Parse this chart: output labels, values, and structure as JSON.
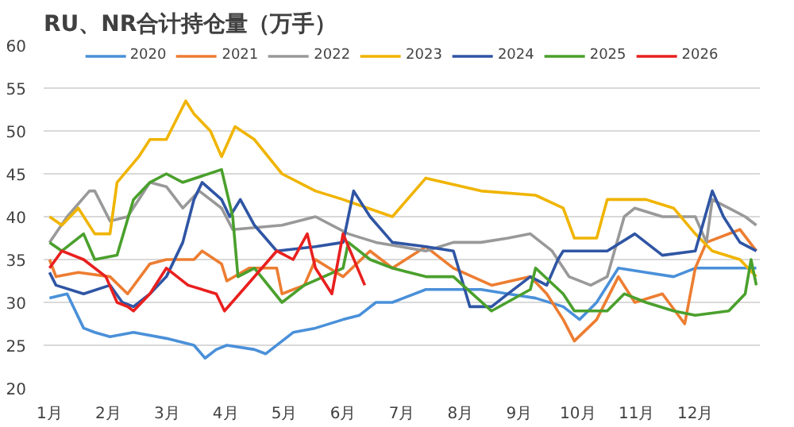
{
  "chart_data": {
    "type": "line",
    "title": "RU、NR合计持仓量（万手）",
    "xlim": [
      0.9,
      13.1
    ],
    "ylim": [
      20,
      60
    ],
    "xticks": [
      {
        "value": 1,
        "label": "1月"
      },
      {
        "value": 2,
        "label": "2月"
      },
      {
        "value": 3,
        "label": "3月"
      },
      {
        "value": 4,
        "label": "4月"
      },
      {
        "value": 5,
        "label": "5月"
      },
      {
        "value": 6,
        "label": "6月"
      },
      {
        "value": 7,
        "label": "7月"
      },
      {
        "value": 8,
        "label": "8月"
      },
      {
        "value": 9,
        "label": "9月"
      },
      {
        "value": 10,
        "label": "10月"
      },
      {
        "value": 11,
        "label": "11月"
      },
      {
        "value": 12,
        "label": "12月"
      }
    ],
    "yticks": [
      20,
      25,
      30,
      35,
      40,
      45,
      50,
      55,
      60
    ],
    "grid": "y",
    "legend": "top",
    "line_style": "solid",
    "marker": "none",
    "series": [
      {
        "name": "2020",
        "color": "#4a90d9",
        "x": [
          1.0,
          1.3,
          1.58,
          1.77,
          2.03,
          2.43,
          2.99,
          3.46,
          3.65,
          3.84,
          4.02,
          4.49,
          4.68,
          5.15,
          5.53,
          6.0,
          6.28,
          6.56,
          6.84,
          7.41,
          7.88,
          8.35,
          8.81,
          9.28,
          9.75,
          10.03,
          10.32,
          10.69,
          11.16,
          11.63,
          12.0,
          12.57,
          13.04
        ],
        "values": [
          30.5,
          31,
          27,
          26.5,
          26,
          26.5,
          25.8,
          25,
          23.5,
          24.5,
          25,
          24.5,
          24,
          26.5,
          27,
          28,
          28.5,
          30,
          30,
          31.5,
          31.5,
          31.5,
          31,
          30.5,
          29.5,
          28,
          30,
          34,
          33.5,
          33,
          34,
          34,
          34
        ]
      },
      {
        "name": "2021",
        "color": "#ed7d31",
        "x": [
          1.0,
          1.11,
          1.49,
          2.03,
          2.33,
          2.71,
          2.99,
          3.46,
          3.6,
          3.93,
          4.02,
          4.4,
          4.87,
          4.96,
          5.34,
          5.53,
          6.0,
          6.46,
          6.84,
          7.41,
          7.88,
          8.53,
          9.19,
          9.47,
          9.75,
          9.94,
          10.32,
          10.69,
          10.97,
          11.44,
          11.82,
          12.0,
          12.19,
          12.76,
          13.04
        ],
        "values": [
          35,
          33,
          33.5,
          33,
          31,
          34.5,
          35,
          35,
          36,
          34.5,
          32.5,
          34,
          34,
          31,
          32,
          35,
          33,
          36,
          34,
          36.5,
          34,
          32,
          33,
          31,
          28,
          25.5,
          28,
          33,
          30,
          31,
          27.5,
          34,
          37,
          38.5,
          36
        ]
      },
      {
        "name": "2022",
        "color": "#999999",
        "x": [
          1.0,
          1.3,
          1.68,
          1.77,
          2.03,
          2.33,
          2.52,
          2.71,
          2.99,
          3.27,
          3.55,
          3.93,
          4.12,
          4.96,
          5.53,
          6.09,
          6.56,
          7.41,
          7.88,
          8.35,
          8.81,
          9.19,
          9.56,
          9.85,
          10.22,
          10.5,
          10.79,
          10.97,
          11.44,
          11.63,
          12.0,
          12.19,
          12.29,
          12.57,
          12.85,
          13.04
        ],
        "values": [
          37,
          40,
          43,
          43,
          39.5,
          40,
          42,
          44,
          43.5,
          41,
          43,
          41,
          38.5,
          39,
          40,
          38,
          37,
          36,
          37,
          37,
          37.5,
          38,
          36,
          33,
          32,
          33,
          40,
          41,
          40,
          40,
          40,
          37,
          42,
          41,
          40,
          39
        ]
      },
      {
        "name": "2023",
        "color": "#f0b400",
        "x": [
          1.0,
          1.21,
          1.49,
          1.77,
          2.03,
          2.15,
          2.52,
          2.71,
          2.99,
          3.32,
          3.46,
          3.74,
          3.93,
          4.16,
          4.49,
          4.96,
          5.53,
          6.0,
          6.84,
          7.41,
          8.35,
          9.28,
          9.75,
          9.94,
          10.32,
          10.5,
          11.16,
          11.63,
          12.0,
          12.29,
          12.76,
          13.04
        ],
        "values": [
          40,
          39,
          41,
          38,
          38,
          44,
          47,
          49,
          49,
          53.5,
          52,
          50,
          47,
          50.5,
          49,
          45,
          43,
          42,
          40,
          44.5,
          43,
          42.5,
          41,
          37.5,
          37.5,
          42,
          42,
          41,
          38,
          36,
          35,
          33
        ]
      },
      {
        "name": "2024",
        "color": "#2f55a4",
        "x": [
          1.0,
          1.11,
          1.58,
          2.03,
          2.24,
          2.43,
          2.71,
          2.99,
          3.27,
          3.46,
          3.6,
          3.93,
          4.07,
          4.25,
          4.49,
          4.87,
          5.53,
          6.0,
          6.18,
          6.46,
          6.84,
          7.41,
          7.88,
          8.16,
          8.53,
          8.81,
          9.19,
          9.47,
          9.66,
          9.75,
          10.5,
          10.97,
          11.44,
          12.0,
          12.29,
          12.48,
          12.76,
          13.04
        ],
        "values": [
          33.5,
          32,
          31,
          32,
          30,
          29.5,
          31,
          33,
          37,
          42,
          44,
          42,
          40,
          42,
          39,
          36,
          36.5,
          37,
          43,
          40,
          37,
          36.5,
          36,
          29.5,
          29.5,
          31,
          33,
          32,
          35,
          36,
          36,
          38,
          35.5,
          36,
          43,
          40,
          37,
          36
        ]
      },
      {
        "name": "2025",
        "color": "#4aa02c",
        "x": [
          1.0,
          1.21,
          1.58,
          1.77,
          2.15,
          2.43,
          2.71,
          2.99,
          3.27,
          3.93,
          4.12,
          4.21,
          4.49,
          4.96,
          5.34,
          6.0,
          6.09,
          6.46,
          6.84,
          7.41,
          7.88,
          8.53,
          9.19,
          9.28,
          9.75,
          9.94,
          10.5,
          10.79,
          11.16,
          11.63,
          12.0,
          12.57,
          12.85,
          12.95,
          13.04
        ],
        "values": [
          37,
          36,
          38,
          35,
          35.5,
          42,
          44,
          45,
          44,
          45.5,
          40,
          33,
          34,
          30,
          32,
          34,
          37,
          35,
          34,
          33,
          33,
          29,
          31.5,
          34,
          31,
          29,
          29,
          31,
          30,
          29,
          28.5,
          29,
          31,
          35,
          32
        ]
      },
      {
        "name": "2026",
        "color": "#e8201f",
        "x": [
          1.0,
          1.21,
          1.58,
          1.96,
          2.15,
          2.33,
          2.43,
          2.71,
          2.99,
          3.36,
          3.84,
          3.98,
          4.3,
          4.87,
          5.15,
          5.39,
          5.53,
          5.81,
          6.0,
          6.37
        ],
        "values": [
          34,
          36,
          35,
          33,
          30,
          29.5,
          29,
          31,
          34,
          32,
          31,
          29,
          31.5,
          36,
          35,
          38,
          34,
          31,
          38,
          32
        ]
      }
    ]
  }
}
